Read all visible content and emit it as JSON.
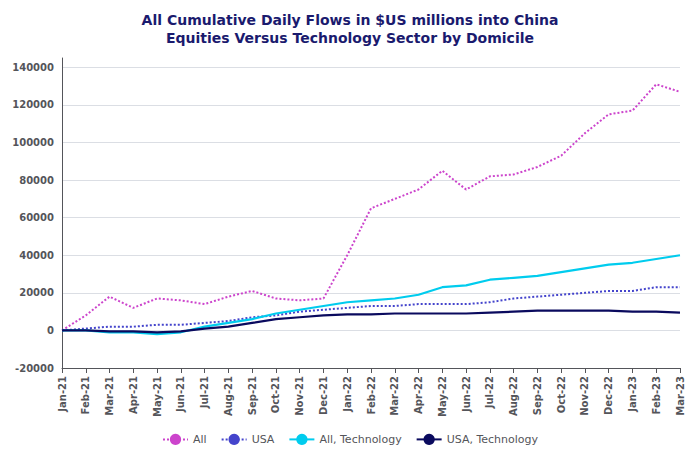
{
  "chart_data": {
    "type": "line",
    "title": "All Cumulative Daily Flows in $US millions into China\nEquities Versus Technology Sector by Domicile",
    "categories": [
      "Jan-21",
      "Feb-21",
      "Mar-21",
      "Apr-21",
      "May-21",
      "Jun-21",
      "Jul-21",
      "Aug-21",
      "Sep-21",
      "Oct-21",
      "Nov-21",
      "Dec-21",
      "Jan-22",
      "Feb-22",
      "Mar-22",
      "Apr-22",
      "May-22",
      "Jun-22",
      "Jul-22",
      "Aug-22",
      "Sep-22",
      "Oct-22",
      "Nov-22",
      "Dec-22",
      "Jan-23",
      "Feb-23",
      "Mar-23"
    ],
    "series": [
      {
        "name": "All",
        "color": "#cc44cc",
        "line_style": "dotted",
        "values": [
          0,
          8000,
          18000,
          12000,
          17000,
          16000,
          14000,
          18000,
          21000,
          17000,
          16000,
          17000,
          40000,
          65000,
          70000,
          75000,
          85000,
          75000,
          82000,
          83000,
          87000,
          93000,
          105000,
          115000,
          117000,
          131000,
          127000
        ]
      },
      {
        "name": "USA",
        "color": "#4444cc",
        "line_style": "dotted",
        "values": [
          0,
          1000,
          2000,
          2000,
          3000,
          3000,
          4000,
          5000,
          7000,
          8000,
          10000,
          11000,
          12000,
          13000,
          13000,
          14000,
          14000,
          14000,
          15000,
          17000,
          18000,
          19000,
          20000,
          21000,
          21000,
          23000,
          23000
        ]
      },
      {
        "name": "All, Technology",
        "color": "#00ccee",
        "line_style": "solid",
        "values": [
          0,
          0,
          -1000,
          -1000,
          -2000,
          -1000,
          2000,
          4000,
          6000,
          9000,
          11000,
          13000,
          15000,
          16000,
          17000,
          19000,
          23000,
          24000,
          27000,
          28000,
          29000,
          31000,
          33000,
          35000,
          36000,
          38000,
          40000
        ]
      },
      {
        "name": "USA, Technology",
        "color": "#0a0a5e",
        "line_style": "solid",
        "values": [
          0,
          0,
          -500,
          -500,
          -1000,
          -500,
          1000,
          2000,
          4000,
          6000,
          7000,
          8000,
          8500,
          8500,
          9000,
          9000,
          9000,
          9000,
          9500,
          10000,
          10500,
          10500,
          10500,
          10500,
          10000,
          10000,
          9500
        ]
      }
    ],
    "ylim": [
      -20000,
      145000
    ],
    "yticks": [
      -20000,
      0,
      20000,
      40000,
      60000,
      80000,
      100000,
      120000,
      140000
    ],
    "grid": true,
    "legend": "bottom"
  }
}
